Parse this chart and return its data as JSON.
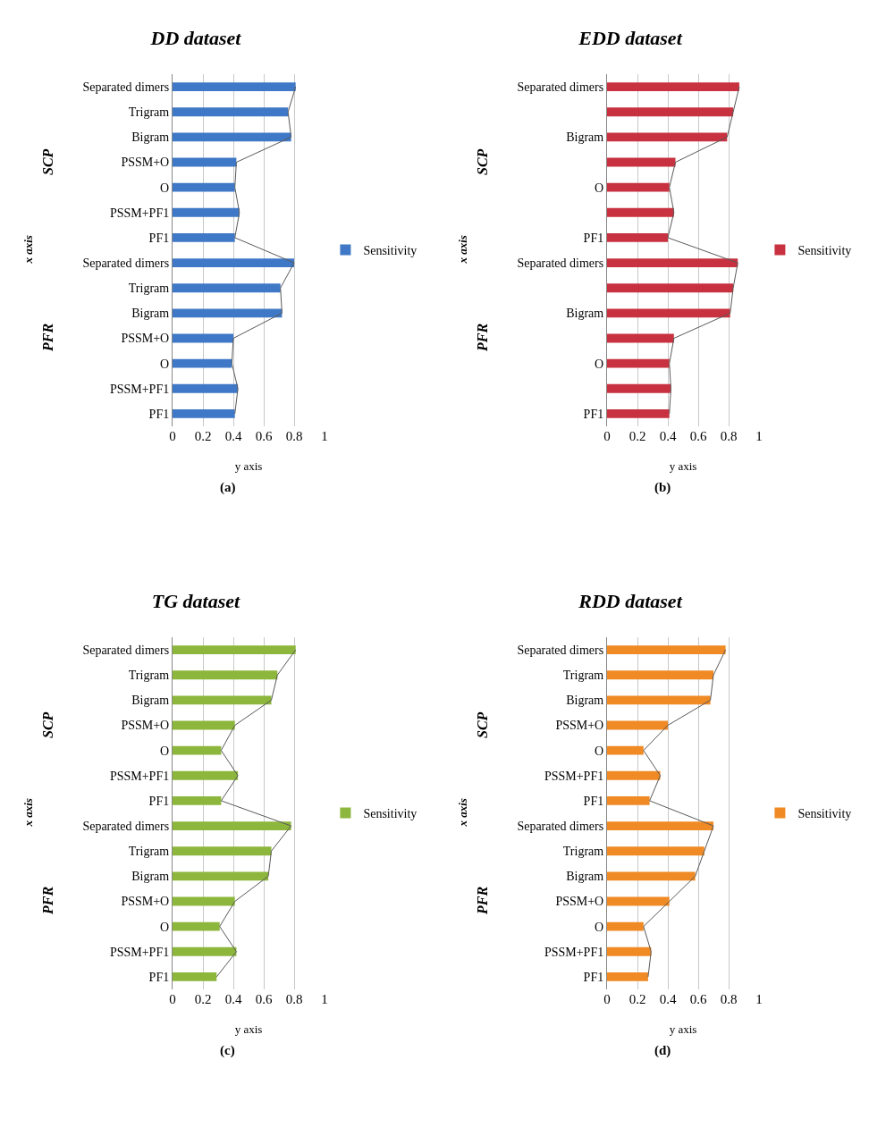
{
  "chart_data": [
    {
      "type": "bar",
      "orientation": "horizontal",
      "title": "DD dataset",
      "xlabel": "y axis",
      "ylabel": "x axis",
      "categories": [
        "Separated dimers",
        "Trigram",
        "Bigram",
        "PSSM+O",
        "O",
        "PSSM+PF1",
        "PF1",
        "Separated dimers",
        "Trigram",
        "Bigram",
        "PSSM+O",
        "O",
        "PSSM+PF1",
        "PF1"
      ],
      "series": [
        {
          "name": "Sensitivity",
          "color": "#3f78c6",
          "values": [
            0.81,
            0.76,
            0.78,
            0.42,
            0.41,
            0.44,
            0.41,
            0.8,
            0.71,
            0.72,
            0.4,
            0.39,
            0.43,
            0.41
          ]
        },
        {
          "type": "line",
          "color": "#595959",
          "values": [
            0.81,
            0.76,
            0.78,
            0.42,
            0.41,
            0.44,
            0.41,
            0.8,
            0.71,
            0.72,
            0.4,
            0.39,
            0.43,
            0.41
          ]
        }
      ],
      "xlim": [
        0,
        1
      ],
      "xticks": [
        0,
        0.2,
        0.4,
        0.6,
        0.8,
        1
      ],
      "grid": "x",
      "legend": "right",
      "annotations": [
        "SCP",
        "PFR",
        "(a)"
      ]
    },
    {
      "type": "bar",
      "orientation": "horizontal",
      "title": "EDD dataset",
      "xlabel": "y axis",
      "ylabel": "x axis",
      "categories": [
        "Separated dimers",
        null,
        "Bigram",
        null,
        "O",
        null,
        "PF1",
        "Separated dimers",
        null,
        "Bigram",
        null,
        "O",
        null,
        "PF1"
      ],
      "series": [
        {
          "name": "Sensitivity",
          "color": "#c8313f",
          "values": [
            0.87,
            0.83,
            0.79,
            0.45,
            0.41,
            0.44,
            0.4,
            0.86,
            0.83,
            0.81,
            0.44,
            0.41,
            0.42,
            0.41
          ]
        },
        {
          "type": "line",
          "color": "#595959",
          "values": [
            0.87,
            0.83,
            0.79,
            0.45,
            0.41,
            0.44,
            0.4,
            0.86,
            0.83,
            0.81,
            0.44,
            0.41,
            0.42,
            0.41
          ]
        }
      ],
      "xlim": [
        0,
        1
      ],
      "xticks": [
        0,
        0.2,
        0.4,
        0.6,
        0.8,
        1
      ],
      "grid": "x",
      "legend": "right",
      "annotations": [
        "SCP",
        "PFR",
        "(b)"
      ]
    },
    {
      "type": "bar",
      "orientation": "horizontal",
      "title": "TG dataset",
      "xlabel": "y axis",
      "ylabel": "x axis",
      "categories": [
        "Separated dimers",
        "Trigram",
        "Bigram",
        "PSSM+O",
        "O",
        "PSSM+PF1",
        "PF1",
        "Separated dimers",
        "Trigram",
        "Bigram",
        "PSSM+O",
        "O",
        "PSSM+PF1",
        "PF1"
      ],
      "series": [
        {
          "name": "Sensitivity",
          "color": "#8db63c",
          "values": [
            0.81,
            0.69,
            0.65,
            0.41,
            0.32,
            0.43,
            0.32,
            0.78,
            0.65,
            0.63,
            0.41,
            0.31,
            0.42,
            0.29
          ]
        },
        {
          "type": "line",
          "color": "#595959",
          "values": [
            0.81,
            0.69,
            0.65,
            0.41,
            0.32,
            0.43,
            0.32,
            0.78,
            0.65,
            0.63,
            0.41,
            0.31,
            0.42,
            0.29
          ]
        }
      ],
      "xlim": [
        0,
        1
      ],
      "xticks": [
        0,
        0.2,
        0.4,
        0.6,
        0.8,
        1
      ],
      "grid": "x",
      "legend": "right",
      "annotations": [
        "SCP",
        "PFR",
        "(c)"
      ]
    },
    {
      "type": "bar",
      "orientation": "horizontal",
      "title": "RDD dataset",
      "xlabel": "y axis",
      "ylabel": "x axis",
      "categories": [
        "Separated dimers",
        "Trigram",
        "Bigram",
        "PSSM+O",
        "O",
        "PSSM+PF1",
        "PF1",
        "Separated dimers",
        "Trigram",
        "Bigram",
        "PSSM+O",
        "O",
        "PSSM+PF1",
        "PF1"
      ],
      "series": [
        {
          "name": "Sensitivity",
          "color": "#f08a24",
          "values": [
            0.78,
            0.7,
            0.68,
            0.4,
            0.24,
            0.35,
            0.28,
            0.7,
            0.64,
            0.58,
            0.41,
            0.24,
            0.29,
            0.27
          ]
        },
        {
          "type": "line",
          "color": "#595959",
          "values": [
            0.78,
            0.7,
            0.68,
            0.4,
            0.24,
            0.35,
            0.28,
            0.7,
            0.64,
            0.58,
            0.41,
            0.24,
            0.29,
            0.27
          ]
        }
      ],
      "xlim": [
        0,
        1
      ],
      "xticks": [
        0,
        0.2,
        0.4,
        0.6,
        0.8,
        1
      ],
      "grid": "x",
      "legend": "right",
      "annotations": [
        "SCP",
        "PFR",
        "(d)"
      ]
    }
  ]
}
